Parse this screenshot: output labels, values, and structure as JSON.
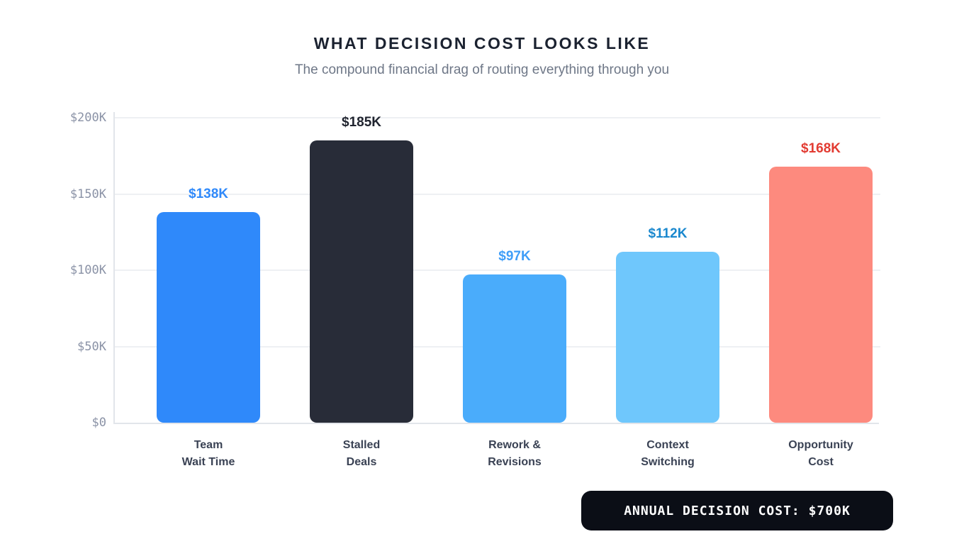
{
  "header": {
    "title": "WHAT DECISION COST LOOKS LIKE",
    "subtitle": "The compound financial drag of routing everything through you"
  },
  "chart_data": {
    "type": "bar",
    "title": "WHAT DECISION COST LOOKS LIKE",
    "subtitle": "The compound financial drag of routing everything through you",
    "categories": [
      "Team\nWait Time",
      "Stalled\nDeals",
      "Rework &\nRevisions",
      "Context\nSwitching",
      "Opportunity\nCost"
    ],
    "values": [
      138000,
      185000,
      97000,
      112000,
      168000
    ],
    "value_labels": [
      "$138K",
      "$185K",
      "$97K",
      "$112K",
      "$168K"
    ],
    "bar_colors": [
      "#2f89fa",
      "#282c38",
      "#4aacfb",
      "#6fc7fc",
      "#fd8a7e"
    ],
    "value_label_colors": [
      "#2f89fa",
      "#20242f",
      "#3f9ef8",
      "#1a88ce",
      "#e23b32"
    ],
    "xlabel": "",
    "ylabel": "",
    "ylim": [
      0,
      200000
    ],
    "yticks": [
      {
        "label": "$0",
        "value": 0
      },
      {
        "label": "$50K",
        "value": 50000
      },
      {
        "label": "$100K",
        "value": 100000
      },
      {
        "label": "$150K",
        "value": 150000
      },
      {
        "label": "$200K",
        "value": 200000
      }
    ],
    "grid": true,
    "legend": false
  },
  "footer": {
    "badge_label": "ANNUAL DECISION COST: $700K"
  },
  "colors": {
    "background": "#ffffff",
    "title_text": "#1b2230",
    "subtitle_text": "#6e7787",
    "tick_text": "#8a92a6",
    "gridline": "#eef0f3",
    "axis_line": "#e2e5ea",
    "category_text": "#3a4254",
    "badge_background": "#0b0e16",
    "badge_text": "#ffffff"
  }
}
